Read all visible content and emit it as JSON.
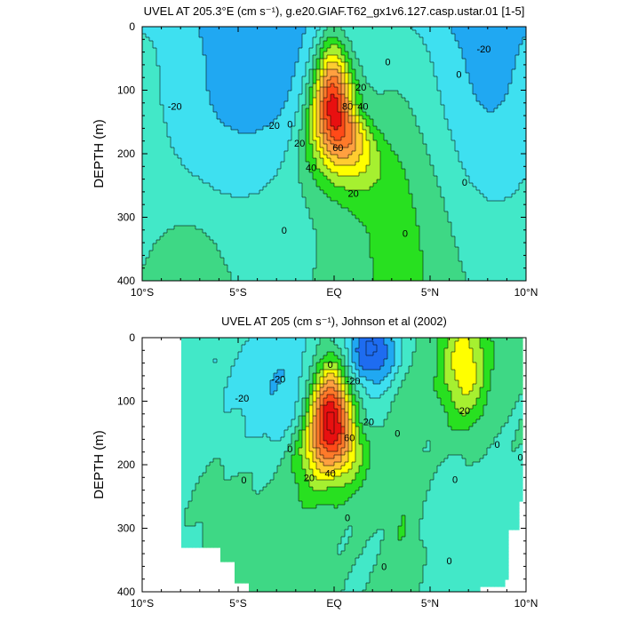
{
  "chart_data": [
    {
      "type": "contour",
      "title": "UVEL AT 205.3°E (cm s⁻¹), g.e20.GIAF.T62_gx1v6.127.casp.ustar.01 [1-5]",
      "ylabel": "DEPTH (m)",
      "xlabel": "",
      "xlim": [
        -10,
        10
      ],
      "ylim": [
        400,
        0
      ],
      "y_inverted": true,
      "xticks": [
        -10,
        -5,
        0,
        5,
        10
      ],
      "xtick_labels": [
        "10°S",
        "5°S",
        "EQ",
        "5°N",
        "10°N"
      ],
      "yticks": [
        0,
        100,
        200,
        300,
        400
      ],
      "ytick_labels": [
        "0",
        "100",
        "200",
        "300",
        "400"
      ],
      "contour_interval": 10,
      "colorscale": [
        "#1e6cf0",
        "#20a8f2",
        "#3ee0f0",
        "#42e8c8",
        "#3ed885",
        "#28e020",
        "#a6f030",
        "#ffff00",
        "#ffcc30",
        "#ffa040",
        "#ff7a2a",
        "#ff4a18",
        "#e81010"
      ],
      "features": [
        {
          "kind": "jet",
          "name": "equatorial undercurrent",
          "lat": -0.1,
          "depth": 130,
          "max": 85
        },
        {
          "kind": "westward",
          "lat": -3,
          "depth": 40,
          "min": -22
        },
        {
          "kind": "westward",
          "lat": 8,
          "depth": 40,
          "min": -22
        }
      ],
      "contour_labels": [
        {
          "text": "-20",
          "lat": -8.3,
          "depth": 125
        },
        {
          "text": "-20",
          "lat": -3.2,
          "depth": 155
        },
        {
          "text": "-20",
          "lat": 7.8,
          "depth": 35
        },
        {
          "text": "0",
          "lat": 2.8,
          "depth": 55
        },
        {
          "text": "0",
          "lat": 6.5,
          "depth": 75
        },
        {
          "text": "0",
          "lat": -2.3,
          "depth": 153
        },
        {
          "text": "0",
          "lat": 6.8,
          "depth": 245
        },
        {
          "text": "0",
          "lat": -2.6,
          "depth": 320
        },
        {
          "text": "0",
          "lat": 3.7,
          "depth": 325
        },
        {
          "text": "20",
          "lat": 1.4,
          "depth": 95
        },
        {
          "text": "20",
          "lat": -1.8,
          "depth": 183
        },
        {
          "text": "20",
          "lat": 1.0,
          "depth": 262
        },
        {
          "text": "40",
          "lat": 1.5,
          "depth": 125
        },
        {
          "text": "40",
          "lat": -1.2,
          "depth": 222
        },
        {
          "text": "60",
          "lat": 0.2,
          "depth": 190
        },
        {
          "text": "80",
          "lat": 0.7,
          "depth": 125
        }
      ]
    },
    {
      "type": "contour",
      "title": "UVEL AT 205 (cm s⁻¹), Johnson et al (2002)",
      "ylabel": "DEPTH (m)",
      "xlabel": "",
      "xlim": [
        -10,
        10
      ],
      "ylim": [
        400,
        0
      ],
      "y_inverted": true,
      "data_lat_range": [
        -8,
        9.8
      ],
      "xticks": [
        -10,
        -5,
        0,
        5,
        10
      ],
      "xtick_labels": [
        "10°S",
        "5°S",
        "EQ",
        "5°N",
        "10°N"
      ],
      "yticks": [
        0,
        100,
        200,
        300,
        400
      ],
      "ytick_labels": [
        "0",
        "100",
        "200",
        "300",
        "400"
      ],
      "contour_interval": 10,
      "colorscale": [
        "#1e6cf0",
        "#20a8f2",
        "#3ee0f0",
        "#42e8c8",
        "#3ed885",
        "#28e020",
        "#a6f030",
        "#ffff00",
        "#ffcc30",
        "#ffa040",
        "#ff7a2a",
        "#ff4a18",
        "#e81010"
      ],
      "features": [
        {
          "kind": "jet",
          "name": "equatorial undercurrent",
          "lat": -0.2,
          "depth": 130,
          "max": 95
        },
        {
          "kind": "westward",
          "lat": 2,
          "depth": 25,
          "min": -35
        },
        {
          "kind": "jet",
          "name": "north equatorial countercurrent",
          "lat": 6.8,
          "depth": 45,
          "max": 35
        }
      ],
      "contour_labels": [
        {
          "text": "-20",
          "lat": -4.8,
          "depth": 95
        },
        {
          "text": "-20",
          "lat": -2.9,
          "depth": 65
        },
        {
          "text": "0",
          "lat": -0.2,
          "depth": 42
        },
        {
          "text": "-20",
          "lat": 1.0,
          "depth": 68
        },
        {
          "text": "0",
          "lat": 3.3,
          "depth": 150
        },
        {
          "text": "20",
          "lat": 6.8,
          "depth": 115
        },
        {
          "text": "20",
          "lat": 1.8,
          "depth": 132
        },
        {
          "text": "60",
          "lat": 0.8,
          "depth": 157
        },
        {
          "text": "40",
          "lat": -0.2,
          "depth": 213
        },
        {
          "text": "20",
          "lat": -1.3,
          "depth": 220
        },
        {
          "text": "0",
          "lat": -2.3,
          "depth": 175
        },
        {
          "text": "0",
          "lat": -4.7,
          "depth": 224
        },
        {
          "text": "0",
          "lat": 0.7,
          "depth": 283
        },
        {
          "text": "0",
          "lat": 8.5,
          "depth": 168
        },
        {
          "text": "0",
          "lat": 9.7,
          "depth": 188
        },
        {
          "text": "0",
          "lat": 6.3,
          "depth": 223
        },
        {
          "text": "0",
          "lat": 2.6,
          "depth": 360
        },
        {
          "text": "0",
          "lat": 6.0,
          "depth": 351
        }
      ]
    }
  ]
}
